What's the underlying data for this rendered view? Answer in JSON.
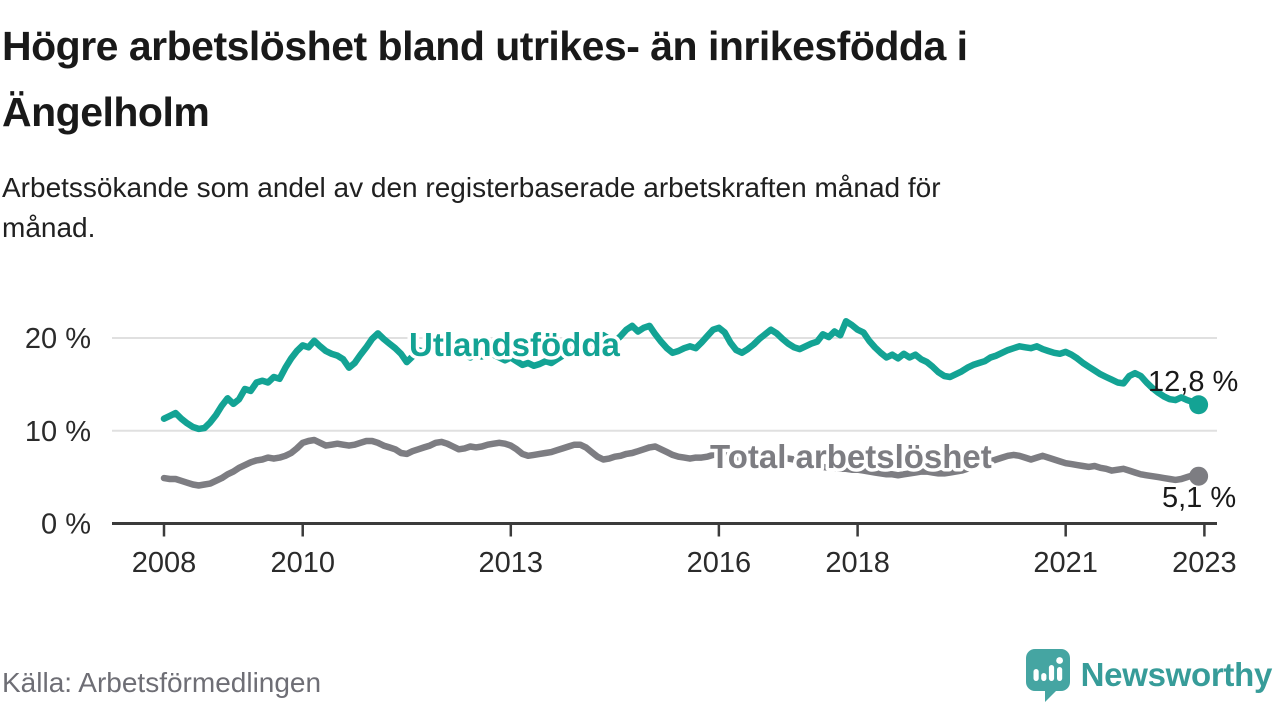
{
  "header": {
    "title_lines": [
      "Högre arbetslöshet bland utrikes- än inrikesfödda i",
      "Ängelholm"
    ],
    "subtitle_lines": [
      "Arbetssökande som andel av den registerbaserade arbetskraften månad för",
      "månad."
    ]
  },
  "footer": {
    "source": "Källa: Arbetsförmedlingen",
    "brand": "Newsworthy",
    "brand_icon": "speech-bubble-bar-chart-exclamation"
  },
  "colors": {
    "series_foreign_born": "#13a394",
    "series_total": "#7d7d82",
    "gridline": "#e0e0e0",
    "axis": "#3b3b3b",
    "axis_text": "#2b2b2b",
    "value_text": "#191919",
    "title_text": "#191919",
    "source_text": "#6e6e75",
    "brand_teal": "#45a5a2"
  },
  "chart_data": {
    "type": "line",
    "unit": "%",
    "frequency": "monthly",
    "x_range": [
      "2008-01",
      "2022-12"
    ],
    "grid": "horizontal",
    "x_ticks": [
      "2008",
      "2010",
      "2013",
      "2016",
      "2018",
      "2021",
      "2023"
    ],
    "y_ticks": [
      {
        "value": 0,
        "label": "0 %"
      },
      {
        "value": 10,
        "label": "10 %"
      },
      {
        "value": 20,
        "label": "20 %"
      }
    ],
    "ylim": [
      0,
      23
    ],
    "series": [
      {
        "name": "Utlandsfödda",
        "color": "#13a394",
        "end_label": "12,8 %",
        "end_value": 12.8,
        "values": [
          11.3,
          11.6,
          11.9,
          11.3,
          10.8,
          10.4,
          10.2,
          10.3,
          10.9,
          11.7,
          12.7,
          13.5,
          12.9,
          13.4,
          14.5,
          14.3,
          15.2,
          15.4,
          15.2,
          15.8,
          15.6,
          16.8,
          17.8,
          18.6,
          19.2,
          19.0,
          19.7,
          19.1,
          18.6,
          18.3,
          18.1,
          17.7,
          16.8,
          17.3,
          18.2,
          19.0,
          19.9,
          20.5,
          19.9,
          19.4,
          18.9,
          18.3,
          17.4,
          18.0,
          18.7,
          18.5,
          18.8,
          18.5,
          18.9,
          19.3,
          18.9,
          18.5,
          18.2,
          17.9,
          18.3,
          18.0,
          18.5,
          18.2,
          17.9,
          17.6,
          17.9,
          17.5,
          17.1,
          17.3,
          17.0,
          17.2,
          17.5,
          17.3,
          17.7,
          18.1,
          18.5,
          18.9,
          19.3,
          19.7,
          19.4,
          19.8,
          20.3,
          19.9,
          19.6,
          20.2,
          20.9,
          21.3,
          20.7,
          21.1,
          21.3,
          20.4,
          19.6,
          18.9,
          18.4,
          18.6,
          18.9,
          19.1,
          18.9,
          19.5,
          20.2,
          20.9,
          21.1,
          20.6,
          19.5,
          18.7,
          18.4,
          18.8,
          19.3,
          19.9,
          20.4,
          20.9,
          20.5,
          19.9,
          19.4,
          19.0,
          18.8,
          19.1,
          19.4,
          19.6,
          20.4,
          20.1,
          20.7,
          20.3,
          21.8,
          21.4,
          20.9,
          20.6,
          19.7,
          19.0,
          18.4,
          17.9,
          18.2,
          17.8,
          18.3,
          17.9,
          18.2,
          17.7,
          17.4,
          16.9,
          16.3,
          15.9,
          15.8,
          16.1,
          16.4,
          16.8,
          17.1,
          17.3,
          17.5,
          17.9,
          18.1,
          18.4,
          18.7,
          18.9,
          19.1,
          19.0,
          18.9,
          19.1,
          18.8,
          18.6,
          18.4,
          18.3,
          18.5,
          18.2,
          17.8,
          17.3,
          16.9,
          16.5,
          16.1,
          15.8,
          15.5,
          15.2,
          15.1,
          15.9,
          16.2,
          15.9,
          15.2,
          14.6,
          14.1,
          13.7,
          13.4,
          13.3,
          13.6,
          13.3,
          13.1,
          12.8
        ]
      },
      {
        "name": "Total arbetslöshet",
        "color": "#7d7d82",
        "end_label": "5,1 %",
        "end_value": 5.1,
        "values": [
          4.9,
          4.8,
          4.8,
          4.6,
          4.4,
          4.2,
          4.1,
          4.2,
          4.3,
          4.6,
          4.9,
          5.3,
          5.6,
          6.0,
          6.3,
          6.6,
          6.8,
          6.9,
          7.1,
          7.0,
          7.1,
          7.3,
          7.6,
          8.1,
          8.7,
          8.9,
          9.0,
          8.7,
          8.4,
          8.5,
          8.6,
          8.5,
          8.4,
          8.5,
          8.7,
          8.9,
          8.9,
          8.7,
          8.4,
          8.2,
          8.0,
          7.6,
          7.5,
          7.8,
          8.0,
          8.2,
          8.4,
          8.7,
          8.8,
          8.6,
          8.3,
          8.0,
          8.1,
          8.3,
          8.2,
          8.3,
          8.5,
          8.6,
          8.7,
          8.6,
          8.4,
          8.0,
          7.5,
          7.3,
          7.4,
          7.5,
          7.6,
          7.7,
          7.9,
          8.1,
          8.3,
          8.5,
          8.5,
          8.2,
          7.7,
          7.2,
          6.9,
          7.0,
          7.2,
          7.3,
          7.5,
          7.6,
          7.8,
          8.0,
          8.2,
          8.3,
          8.0,
          7.7,
          7.4,
          7.2,
          7.1,
          7.0,
          7.1,
          7.1,
          7.2,
          7.4,
          7.5,
          7.6,
          7.4,
          7.2,
          7.0,
          6.9,
          6.8,
          6.7,
          6.8,
          6.9,
          7.0,
          7.1,
          7.0,
          6.9,
          6.7,
          6.5,
          6.3,
          6.2,
          6.1,
          6.0,
          6.0,
          5.9,
          5.9,
          5.8,
          5.8,
          5.7,
          5.6,
          5.5,
          5.4,
          5.3,
          5.3,
          5.2,
          5.3,
          5.4,
          5.5,
          5.6,
          5.6,
          5.5,
          5.4,
          5.4,
          5.5,
          5.6,
          5.7,
          5.9,
          6.1,
          6.3,
          6.5,
          6.7,
          6.9,
          7.1,
          7.3,
          7.4,
          7.3,
          7.1,
          6.9,
          7.1,
          7.3,
          7.1,
          6.9,
          6.7,
          6.5,
          6.4,
          6.3,
          6.2,
          6.1,
          6.2,
          6.0,
          5.9,
          5.7,
          5.8,
          5.9,
          5.7,
          5.5,
          5.3,
          5.2,
          5.1,
          5.0,
          4.9,
          4.8,
          4.7,
          4.8,
          5.0,
          5.2,
          5.1
        ]
      }
    ]
  }
}
